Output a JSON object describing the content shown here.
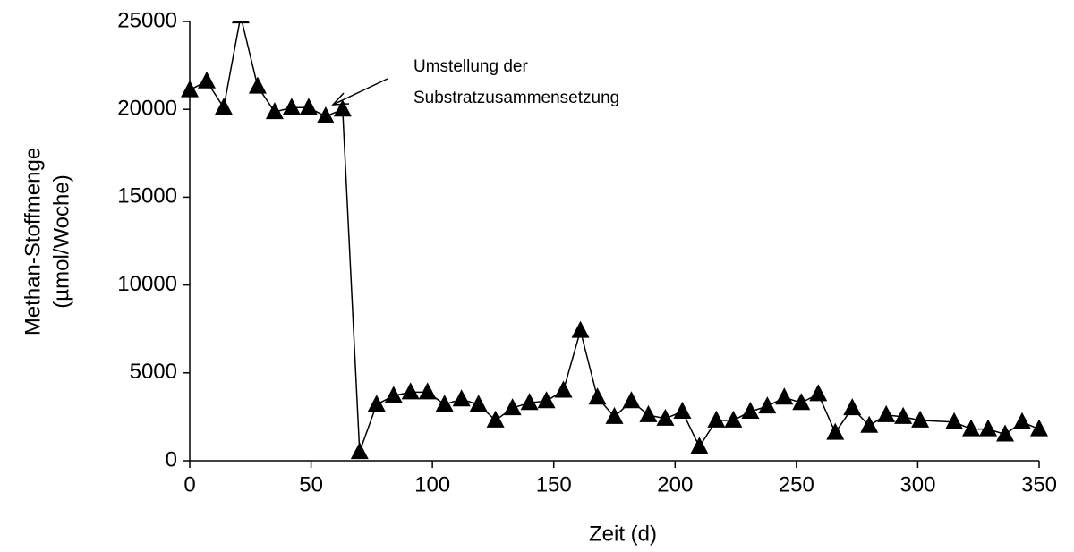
{
  "chart_data": {
    "type": "line",
    "x_label": "Zeit (d)",
    "y_label": [
      "Methan-Stoffmenge",
      "(µmol/Woche)"
    ],
    "annotation": [
      "Umstellung der",
      "Substratzusammensetzung"
    ],
    "x": [
      0,
      7,
      14,
      21,
      28,
      35,
      42,
      49,
      56,
      63,
      70,
      77,
      84,
      91,
      98,
      105,
      112,
      119,
      126,
      133,
      140,
      147,
      154,
      161,
      168,
      175,
      182,
      189,
      196,
      203,
      210,
      217,
      224,
      231,
      238,
      245,
      252,
      259,
      266,
      273,
      280,
      287,
      294,
      301,
      315,
      322,
      329,
      336,
      343,
      350
    ],
    "series": [
      {
        "name": "Methan",
        "color": "#000000",
        "values": [
          21100,
          21600,
          20100,
          25300,
          21300,
          19850,
          20100,
          20100,
          19600,
          20000,
          500,
          3200,
          3700,
          3900,
          3900,
          3200,
          3500,
          3200,
          2300,
          3000,
          3300,
          3400,
          4000,
          7400,
          3600,
          2500,
          3400,
          2600,
          2400,
          2800,
          800,
          2300,
          2300,
          2800,
          3100,
          3600,
          3300,
          3800,
          1600,
          3000,
          2000,
          2600,
          2500,
          2300,
          2200,
          1800,
          1800,
          1500,
          2200,
          1800
        ]
      }
    ],
    "xlim": [
      0,
      350
    ],
    "xticks": [
      0,
      50,
      100,
      150,
      200,
      250,
      300,
      350
    ],
    "ylim": [
      0,
      25000
    ],
    "yticks": [
      0,
      5000,
      10000,
      15000,
      20000,
      25000
    ]
  }
}
